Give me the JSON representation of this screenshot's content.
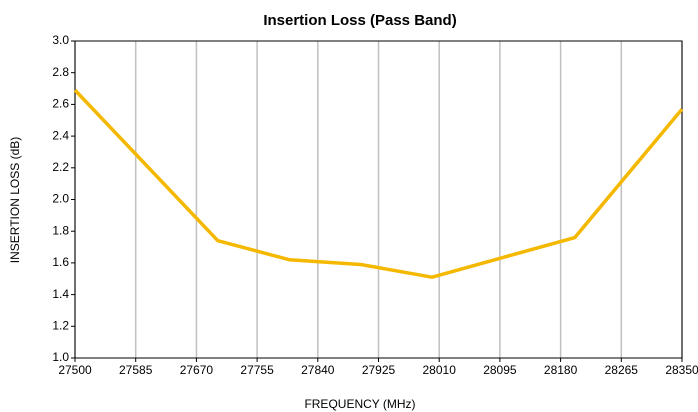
{
  "chart_data": {
    "type": "line",
    "title": "Insertion Loss (Pass Band)",
    "xlabel": "FREQUENCY (MHz)",
    "ylabel": "INSERTION LOSS (dB)",
    "x": [
      27500,
      27700,
      27800,
      27900,
      28000,
      28200,
      28350
    ],
    "series": [
      {
        "name": "Insertion Loss",
        "color": "#f5b800",
        "values": [
          2.69,
          1.74,
          1.62,
          1.59,
          1.51,
          1.76,
          2.57
        ]
      }
    ],
    "xlim": [
      27500,
      28350
    ],
    "xticks": [
      27500,
      27585,
      27670,
      27755,
      27840,
      27925,
      28010,
      28095,
      28180,
      28265,
      28350
    ],
    "ylim": [
      1,
      3
    ],
    "yticks": [
      {
        "value": 1,
        "label": "1.0"
      },
      1.2,
      1.4,
      1.6,
      1.8,
      {
        "value": 2,
        "label": "2.0"
      },
      2.2,
      2.4,
      2.6,
      2.8,
      {
        "value": 3,
        "label": "3.0"
      }
    ],
    "grid": "x"
  }
}
